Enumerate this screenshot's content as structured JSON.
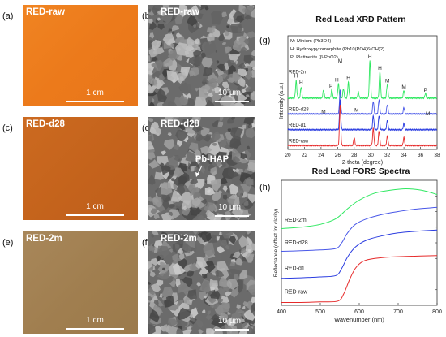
{
  "colors": {
    "raw": "#ef7d1d",
    "d28": "#c8641c",
    "m2": "#a2814e",
    "d1": "#2a3ce0",
    "green": "#2ee860",
    "red": "#e62a2a",
    "gray": "#606060"
  },
  "panels": {
    "a": {
      "label": "(a)",
      "title": "RED-raw",
      "scale": "1 cm"
    },
    "b": {
      "label": "(b)",
      "title": "RED-raw",
      "scale": "10 μm"
    },
    "c": {
      "label": "(c)",
      "title": "RED-d28",
      "scale": "1 cm"
    },
    "d": {
      "label": "(d)",
      "title": "RED-d28",
      "scale": "10 μm",
      "annotation": "Pb-HAP"
    },
    "e": {
      "label": "(e)",
      "title": "RED-2m",
      "scale": "1 cm"
    },
    "f": {
      "label": "(f)",
      "title": "RED-2m",
      "scale": "10 μm"
    },
    "g": {
      "label": "(g)"
    },
    "h": {
      "label": "(h)"
    }
  },
  "chart_data": [
    {
      "type": "line",
      "title": "Red Lead XRD Pattern",
      "xlabel": "2-theta (degree)",
      "ylabel": "Intensity (a.u.)",
      "xlim": [
        20,
        38
      ],
      "xticks": [
        20,
        22,
        24,
        26,
        28,
        30,
        32,
        34,
        36,
        38
      ],
      "legend": [
        "M: Minium (Pb3O4)",
        "H: Hydroxypyromorphite (Pb10(PO4)6(OH)2)",
        "P: Plattnerite (β-PbO2)"
      ],
      "series": [
        {
          "name": "RED-2m",
          "color": "#2ee860",
          "offset": 3,
          "peaks": [
            [
              21.0,
              1.1
            ],
            [
              21.6,
              0.7
            ],
            [
              24.3,
              0.5
            ],
            [
              25.3,
              0.55
            ],
            [
              26.1,
              0.9
            ],
            [
              26.7,
              0.6
            ],
            [
              27.3,
              1.0
            ],
            [
              28.5,
              0.4
            ],
            [
              29.9,
              2.4
            ],
            [
              31.1,
              1.7
            ],
            [
              32.0,
              0.9
            ],
            [
              34.0,
              0.5
            ],
            [
              36.6,
              0.3
            ]
          ]
        },
        {
          "name": "RED-d28",
          "color": "#4857e8",
          "offset": 2,
          "peaks": [
            [
              26.3,
              1.5
            ],
            [
              30.3,
              0.8
            ],
            [
              31.0,
              0.9
            ],
            [
              32.0,
              0.6
            ],
            [
              34.0,
              0.4
            ]
          ]
        },
        {
          "name": "RED-d1",
          "color": "#2a3ce0",
          "offset": 1,
          "peaks": [
            [
              26.3,
              1.9
            ],
            [
              30.3,
              0.9
            ],
            [
              31.0,
              0.9
            ],
            [
              32.0,
              0.6
            ],
            [
              34.0,
              0.4
            ]
          ]
        },
        {
          "name": "RED-raw",
          "color": "#e62a2a",
          "offset": 0,
          "peaks": [
            [
              26.3,
              2.6
            ],
            [
              28.0,
              0.5
            ],
            [
              30.3,
              1.1
            ],
            [
              31.0,
              0.9
            ],
            [
              32.0,
              0.6
            ],
            [
              34.0,
              0.5
            ]
          ]
        }
      ],
      "peak_labels": [
        {
          "text": "H",
          "x": 21.0,
          "y": 4.55
        },
        {
          "text": "H",
          "x": 21.6,
          "y": 4.15
        },
        {
          "text": "P",
          "x": 25.2,
          "y": 3.9
        },
        {
          "text": "H",
          "x": 25.9,
          "y": 4.3
        },
        {
          "text": "M",
          "x": 26.3,
          "y": 5.5
        },
        {
          "text": "H",
          "x": 27.3,
          "y": 4.45
        },
        {
          "text": "H",
          "x": 29.9,
          "y": 5.75
        },
        {
          "text": "H",
          "x": 31.1,
          "y": 5.05
        },
        {
          "text": "M",
          "x": 32.0,
          "y": 4.25
        },
        {
          "text": "M",
          "x": 34.0,
          "y": 3.85
        },
        {
          "text": "P",
          "x": 36.6,
          "y": 3.65
        },
        {
          "text": "M",
          "x": 24.3,
          "y": 2.3
        },
        {
          "text": "M",
          "x": 28.3,
          "y": 2.4
        },
        {
          "text": "M",
          "x": 36.9,
          "y": 2.15
        }
      ],
      "curve_labels": [
        {
          "text": "RED-2m",
          "x": 20.1,
          "y": 4.8
        },
        {
          "text": "RED-d28",
          "x": 20.1,
          "y": 2.45
        },
        {
          "text": "RED-d1",
          "x": 20.1,
          "y": 1.45
        },
        {
          "text": "RED-raw",
          "x": 20.1,
          "y": 0.45
        }
      ],
      "ylim": [
        0,
        7.2
      ]
    },
    {
      "type": "line",
      "title": "Red Lead FORS Spectra",
      "xlabel": "Wavenumber (nm)",
      "ylabel": "Reflectance (offset for clarity)",
      "xlim": [
        400,
        800
      ],
      "xticks": [
        400,
        500,
        600,
        700,
        800
      ],
      "ylim": [
        0,
        4.4
      ],
      "series": [
        {
          "name": "RED-2m",
          "color": "#2ee860",
          "x": [
            400,
            450,
            500,
            540,
            570,
            600,
            640,
            680,
            720,
            760,
            800
          ],
          "y": [
            2.7,
            2.75,
            2.85,
            3.05,
            3.4,
            3.7,
            3.95,
            4.05,
            4.1,
            4.05,
            3.9
          ]
        },
        {
          "name": "RED-d28",
          "color": "#4857e8",
          "x": [
            400,
            450,
            500,
            540,
            555,
            570,
            590,
            620,
            660,
            700,
            740,
            800
          ],
          "y": [
            1.9,
            1.92,
            1.95,
            2.0,
            2.2,
            2.55,
            2.85,
            3.05,
            3.2,
            3.3,
            3.38,
            3.45
          ]
        },
        {
          "name": "RED-d1",
          "color": "#2a3ce0",
          "x": [
            400,
            450,
            500,
            540,
            555,
            570,
            590,
            620,
            660,
            700,
            740,
            800
          ],
          "y": [
            0.95,
            0.97,
            1.0,
            1.05,
            1.3,
            1.7,
            2.05,
            2.3,
            2.45,
            2.55,
            2.6,
            2.65
          ]
        },
        {
          "name": "RED-raw",
          "color": "#e62a2a",
          "x": [
            400,
            450,
            500,
            545,
            560,
            575,
            590,
            610,
            640,
            680,
            720,
            800
          ],
          "y": [
            0.1,
            0.1,
            0.12,
            0.15,
            0.4,
            0.9,
            1.3,
            1.55,
            1.65,
            1.7,
            1.72,
            1.75
          ]
        }
      ],
      "curve_labels": [
        {
          "text": "RED-2m",
          "x": 408,
          "y": 2.95
        },
        {
          "text": "RED-d28",
          "x": 408,
          "y": 2.15
        },
        {
          "text": "RED-d1",
          "x": 408,
          "y": 1.25
        },
        {
          "text": "RED-raw",
          "x": 408,
          "y": 0.42
        }
      ]
    }
  ]
}
